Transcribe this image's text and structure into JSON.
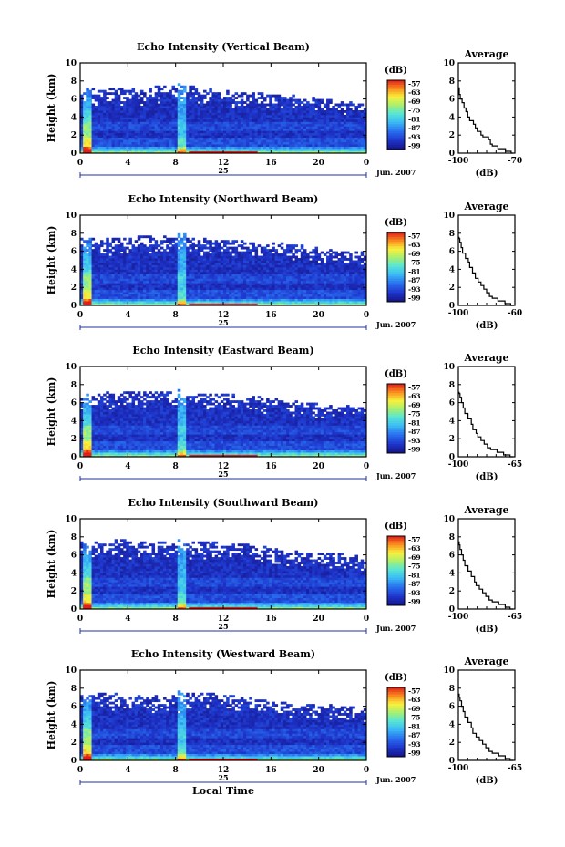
{
  "chart_data": [
    {
      "type": "heatmap",
      "title": "Echo Intensity (Vertical Beam)",
      "ylabel": "Height (km)",
      "xlabel": "",
      "ylim": [
        0,
        10
      ],
      "xlim": [
        0,
        24
      ],
      "x_ticks": [
        "0",
        "4",
        "8",
        "12",
        "16",
        "20",
        "0"
      ],
      "y_ticks": [
        "0",
        "2",
        "4",
        "6",
        "8",
        "10"
      ],
      "date_label": "25",
      "month_label": "Jun. 2007",
      "colorbar": {
        "label": "(dB)",
        "ticks": [
          "-57",
          "-63",
          "-69",
          "-75",
          "-81",
          "-87",
          "-93",
          "-99"
        ]
      },
      "cloud_top_km": 7.3,
      "spike_hours": [
        0.5,
        8.5
      ],
      "average": {
        "title": "Average",
        "xlabel": "(dB)",
        "xlim": [
          -100,
          -70
        ],
        "x_tick_labels": [
          "-100",
          "-70"
        ],
        "profile": [
          [
            -71,
            0
          ],
          [
            -72,
            0.2
          ],
          [
            -75,
            0.5
          ],
          [
            -79,
            0.8
          ],
          [
            -82,
            1.0
          ],
          [
            -83,
            1.5
          ],
          [
            -84,
            1.8
          ],
          [
            -87,
            2.0
          ],
          [
            -88,
            2.4
          ],
          [
            -90,
            2.8
          ],
          [
            -91,
            3.2
          ],
          [
            -92,
            3.6
          ],
          [
            -94,
            4.0
          ],
          [
            -95,
            4.6
          ],
          [
            -96,
            5.0
          ],
          [
            -97,
            5.6
          ],
          [
            -98,
            6.0
          ],
          [
            -99,
            6.5
          ],
          [
            -99.5,
            7.0
          ],
          [
            -99.5,
            7.3
          ]
        ]
      }
    },
    {
      "type": "heatmap",
      "title": "Echo Intensity (Northward Beam)",
      "ylabel": "Height (km)",
      "xlabel": "",
      "ylim": [
        0,
        10
      ],
      "xlim": [
        0,
        24
      ],
      "x_ticks": [
        "0",
        "4",
        "8",
        "12",
        "16",
        "20",
        "0"
      ],
      "y_ticks": [
        "0",
        "2",
        "4",
        "6",
        "8",
        "10"
      ],
      "date_label": "25",
      "month_label": "Jun. 2007",
      "colorbar": {
        "label": "(dB)",
        "ticks": [
          "-57",
          "-63",
          "-69",
          "-75",
          "-81",
          "-87",
          "-93",
          "-99"
        ]
      },
      "cloud_top_km": 7.6,
      "spike_hours": [
        0.5,
        8.5
      ],
      "average": {
        "title": "Average",
        "xlabel": "(dB)",
        "xlim": [
          -100,
          -60
        ],
        "x_tick_labels": [
          "-100",
          "-60"
        ],
        "profile": [
          [
            -61,
            0
          ],
          [
            -63,
            0.2
          ],
          [
            -67,
            0.5
          ],
          [
            -72,
            0.8
          ],
          [
            -76,
            1.0
          ],
          [
            -78,
            1.4
          ],
          [
            -80,
            1.8
          ],
          [
            -82,
            2.2
          ],
          [
            -84,
            2.6
          ],
          [
            -86,
            3.0
          ],
          [
            -88,
            3.6
          ],
          [
            -90,
            4.2
          ],
          [
            -92,
            4.8
          ],
          [
            -93,
            5.2
          ],
          [
            -95,
            5.8
          ],
          [
            -97,
            6.4
          ],
          [
            -98,
            7.0
          ],
          [
            -99,
            7.4
          ],
          [
            -99.5,
            7.6
          ]
        ]
      }
    },
    {
      "type": "heatmap",
      "title": "Echo Intensity (Eastward Beam)",
      "ylabel": "Height (km)",
      "xlabel": "",
      "ylim": [
        0,
        10
      ],
      "xlim": [
        0,
        24
      ],
      "x_ticks": [
        "0",
        "4",
        "8",
        "12",
        "16",
        "20",
        "0"
      ],
      "y_ticks": [
        "0",
        "2",
        "4",
        "6",
        "8",
        "10"
      ],
      "date_label": "25",
      "month_label": "Jun. 2007",
      "colorbar": {
        "label": "(dB)",
        "ticks": [
          "-57",
          "-63",
          "-69",
          "-75",
          "-81",
          "-87",
          "-93",
          "-99"
        ]
      },
      "cloud_top_km": 7.2,
      "spike_hours": [
        0.5,
        8.5
      ],
      "average": {
        "title": "Average",
        "xlabel": "(dB)",
        "xlim": [
          -100,
          -65
        ],
        "x_tick_labels": [
          "-100",
          "-65"
        ],
        "profile": [
          [
            -66,
            0
          ],
          [
            -68,
            0.2
          ],
          [
            -72,
            0.5
          ],
          [
            -76,
            0.8
          ],
          [
            -80,
            1.0
          ],
          [
            -82,
            1.4
          ],
          [
            -84,
            1.8
          ],
          [
            -86,
            2.2
          ],
          [
            -88,
            2.6
          ],
          [
            -89,
            3.0
          ],
          [
            -91,
            3.6
          ],
          [
            -92,
            4.2
          ],
          [
            -94,
            4.8
          ],
          [
            -96,
            5.4
          ],
          [
            -97,
            6.0
          ],
          [
            -98,
            6.6
          ],
          [
            -99,
            7.0
          ],
          [
            -99.5,
            7.2
          ]
        ]
      }
    },
    {
      "type": "heatmap",
      "title": "Echo Intensity (Southward Beam)",
      "ylabel": "Height (km)",
      "xlabel": "",
      "ylim": [
        0,
        10
      ],
      "xlim": [
        0,
        24
      ],
      "x_ticks": [
        "0",
        "4",
        "8",
        "12",
        "16",
        "20",
        "0"
      ],
      "y_ticks": [
        "0",
        "2",
        "4",
        "6",
        "8",
        "10"
      ],
      "date_label": "25",
      "month_label": "Jun. 2007",
      "colorbar": {
        "label": "(dB)",
        "ticks": [
          "-57",
          "-63",
          "-69",
          "-75",
          "-81",
          "-87",
          "-93",
          "-99"
        ]
      },
      "cloud_top_km": 7.5,
      "spike_hours": [
        0.5,
        8.5
      ],
      "average": {
        "title": "Average",
        "xlabel": "(dB)",
        "xlim": [
          -100,
          -65
        ],
        "x_tick_labels": [
          "-100",
          "-65"
        ],
        "profile": [
          [
            -66,
            0
          ],
          [
            -68,
            0.2
          ],
          [
            -71,
            0.5
          ],
          [
            -75,
            0.8
          ],
          [
            -79,
            1.0
          ],
          [
            -81,
            1.4
          ],
          [
            -83,
            1.8
          ],
          [
            -85,
            2.2
          ],
          [
            -87,
            2.6
          ],
          [
            -89,
            3.0
          ],
          [
            -90,
            3.6
          ],
          [
            -92,
            4.2
          ],
          [
            -94,
            4.8
          ],
          [
            -96,
            5.4
          ],
          [
            -97,
            6.0
          ],
          [
            -98,
            6.6
          ],
          [
            -99,
            7.1
          ],
          [
            -99.5,
            7.5
          ]
        ]
      }
    },
    {
      "type": "heatmap",
      "title": "Echo Intensity (Westward Beam)",
      "ylabel": "Height (km)",
      "xlabel": "Local Time",
      "ylim": [
        0,
        10
      ],
      "xlim": [
        0,
        24
      ],
      "x_ticks": [
        "0",
        "4",
        "8",
        "12",
        "16",
        "20",
        "0"
      ],
      "y_ticks": [
        "0",
        "2",
        "4",
        "6",
        "8",
        "10"
      ],
      "date_label": "25",
      "month_label": "Jun. 2007",
      "colorbar": {
        "label": "(dB)",
        "ticks": [
          "-57",
          "-63",
          "-69",
          "-75",
          "-81",
          "-87",
          "-93",
          "-99"
        ]
      },
      "cloud_top_km": 7.4,
      "spike_hours": [
        0.5,
        8.5
      ],
      "average": {
        "title": "Average",
        "xlabel": "(dB)",
        "xlim": [
          -100,
          -65
        ],
        "x_tick_labels": [
          "-100",
          "-65"
        ],
        "profile": [
          [
            -66,
            0
          ],
          [
            -68,
            0.2
          ],
          [
            -71,
            0.5
          ],
          [
            -75,
            0.8
          ],
          [
            -79,
            1.0
          ],
          [
            -81,
            1.4
          ],
          [
            -83,
            1.8
          ],
          [
            -85,
            2.2
          ],
          [
            -87,
            2.6
          ],
          [
            -89,
            3.0
          ],
          [
            -91,
            3.6
          ],
          [
            -92,
            4.2
          ],
          [
            -94,
            4.8
          ],
          [
            -96,
            5.4
          ],
          [
            -97,
            6.0
          ],
          [
            -98,
            6.6
          ],
          [
            -99,
            7.0
          ],
          [
            -99.5,
            7.4
          ]
        ]
      }
    }
  ]
}
